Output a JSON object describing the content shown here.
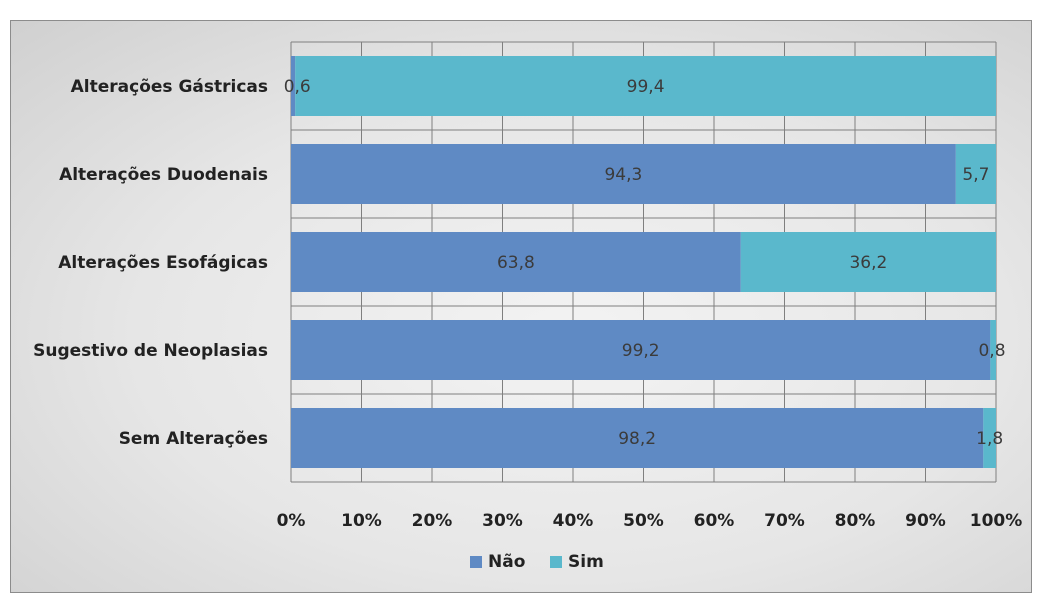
{
  "colors": {
    "nao": "#5f8ac4",
    "sim": "#5ab8cc",
    "grid": "#7f7f7f"
  },
  "chart_data": {
    "type": "bar",
    "orientation": "horizontal",
    "stacked": "percent",
    "categories": [
      "Alterações Gástricas",
      "Alterações Duodenais",
      "Alterações Esofágicas",
      "Sugestivo de Neoplasias",
      "Sem Alterações"
    ],
    "series": [
      {
        "name": "Não",
        "values": [
          0.6,
          94.3,
          63.8,
          99.2,
          98.2
        ],
        "labels": [
          "0,6",
          "94,3",
          "63,8",
          "99,2",
          "98,2"
        ]
      },
      {
        "name": "Sim",
        "values": [
          99.4,
          5.7,
          36.2,
          0.8,
          1.8
        ],
        "labels": [
          "99,4",
          "5,7",
          "36,2",
          "0,8",
          "1,8"
        ]
      }
    ],
    "xlim": [
      0,
      100
    ],
    "x_ticks": [
      "0%",
      "10%",
      "20%",
      "30%",
      "40%",
      "50%",
      "60%",
      "70%",
      "80%",
      "90%",
      "100%"
    ],
    "grid": true,
    "legend": "bottom"
  }
}
